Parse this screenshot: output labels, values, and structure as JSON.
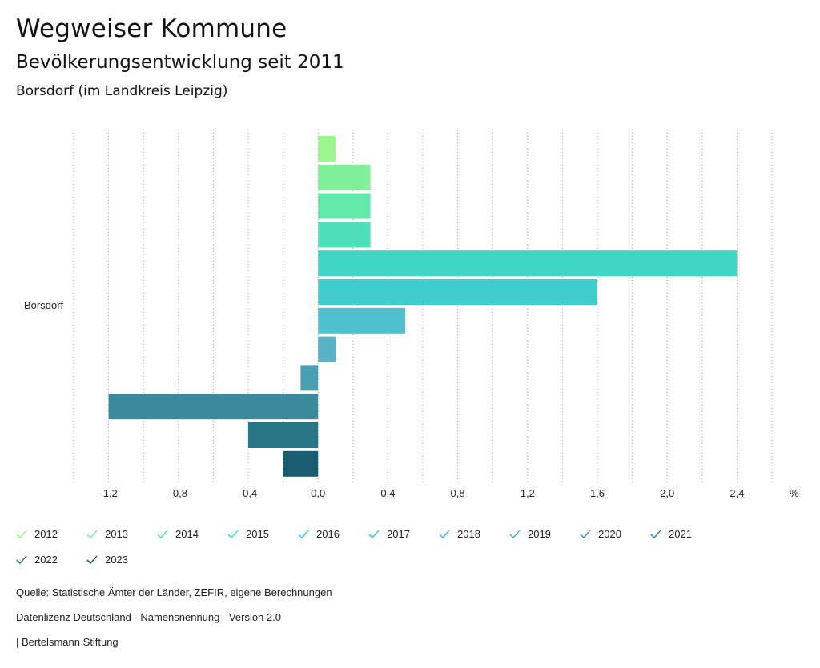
{
  "header": {
    "title": "Wegweiser Kommune",
    "subtitle": "Bevölkerungsentwicklung seit 2011",
    "region": "Borsdorf (im Landkreis Leipzig)"
  },
  "chart_data": {
    "type": "bar",
    "orientation": "horizontal",
    "categories": [
      "Borsdorf"
    ],
    "series": [
      {
        "name": "2012",
        "values": [
          0.1
        ],
        "color": "#9ef58f"
      },
      {
        "name": "2013",
        "values": [
          0.3
        ],
        "color": "#80f09a"
      },
      {
        "name": "2014",
        "values": [
          0.3
        ],
        "color": "#62e9a9"
      },
      {
        "name": "2015",
        "values": [
          0.3
        ],
        "color": "#4ee0b9"
      },
      {
        "name": "2016",
        "values": [
          2.4
        ],
        "color": "#40d6c6"
      },
      {
        "name": "2017",
        "values": [
          1.6
        ],
        "color": "#40cdce"
      },
      {
        "name": "2018",
        "values": [
          0.5
        ],
        "color": "#4ec0d0"
      },
      {
        "name": "2019",
        "values": [
          0.1
        ],
        "color": "#5ab3c8"
      },
      {
        "name": "2020",
        "values": [
          -0.1
        ],
        "color": "#4a9eb2"
      },
      {
        "name": "2021",
        "values": [
          -1.2
        ],
        "color": "#3a8a9c"
      },
      {
        "name": "2022",
        "values": [
          -0.4
        ],
        "color": "#287586"
      },
      {
        "name": "2023",
        "values": [
          -0.2
        ],
        "color": "#195e70"
      }
    ],
    "xlim": [
      -1.4,
      2.6
    ],
    "xticks": [
      "-1,2",
      "-0,8",
      "-0,4",
      "0,0",
      "0,4",
      "0,8",
      "1,2",
      "1,6",
      "2,0",
      "2,4"
    ],
    "xtick_values": [
      -1.2,
      -0.8,
      -0.4,
      0.0,
      0.4,
      0.8,
      1.2,
      1.6,
      2.0,
      2.4
    ],
    "grid_values": [
      -1.4,
      -1.2,
      -1.0,
      -0.8,
      -0.6,
      -0.4,
      -0.2,
      0.0,
      0.2,
      0.4,
      0.6,
      0.8,
      1.0,
      1.2,
      1.4,
      1.6,
      1.8,
      2.0,
      2.2,
      2.4,
      2.6
    ],
    "unit_label": "%",
    "grid": true,
    "legend_position": "bottom-left"
  },
  "footer": {
    "source": "Quelle: Statistische Ämter der Länder, ZEFIR, eigene Berechnungen",
    "license": "Datenlizenz Deutschland - Namensnennung - Version 2.0",
    "publisher": "| Bertelsmann Stiftung"
  }
}
